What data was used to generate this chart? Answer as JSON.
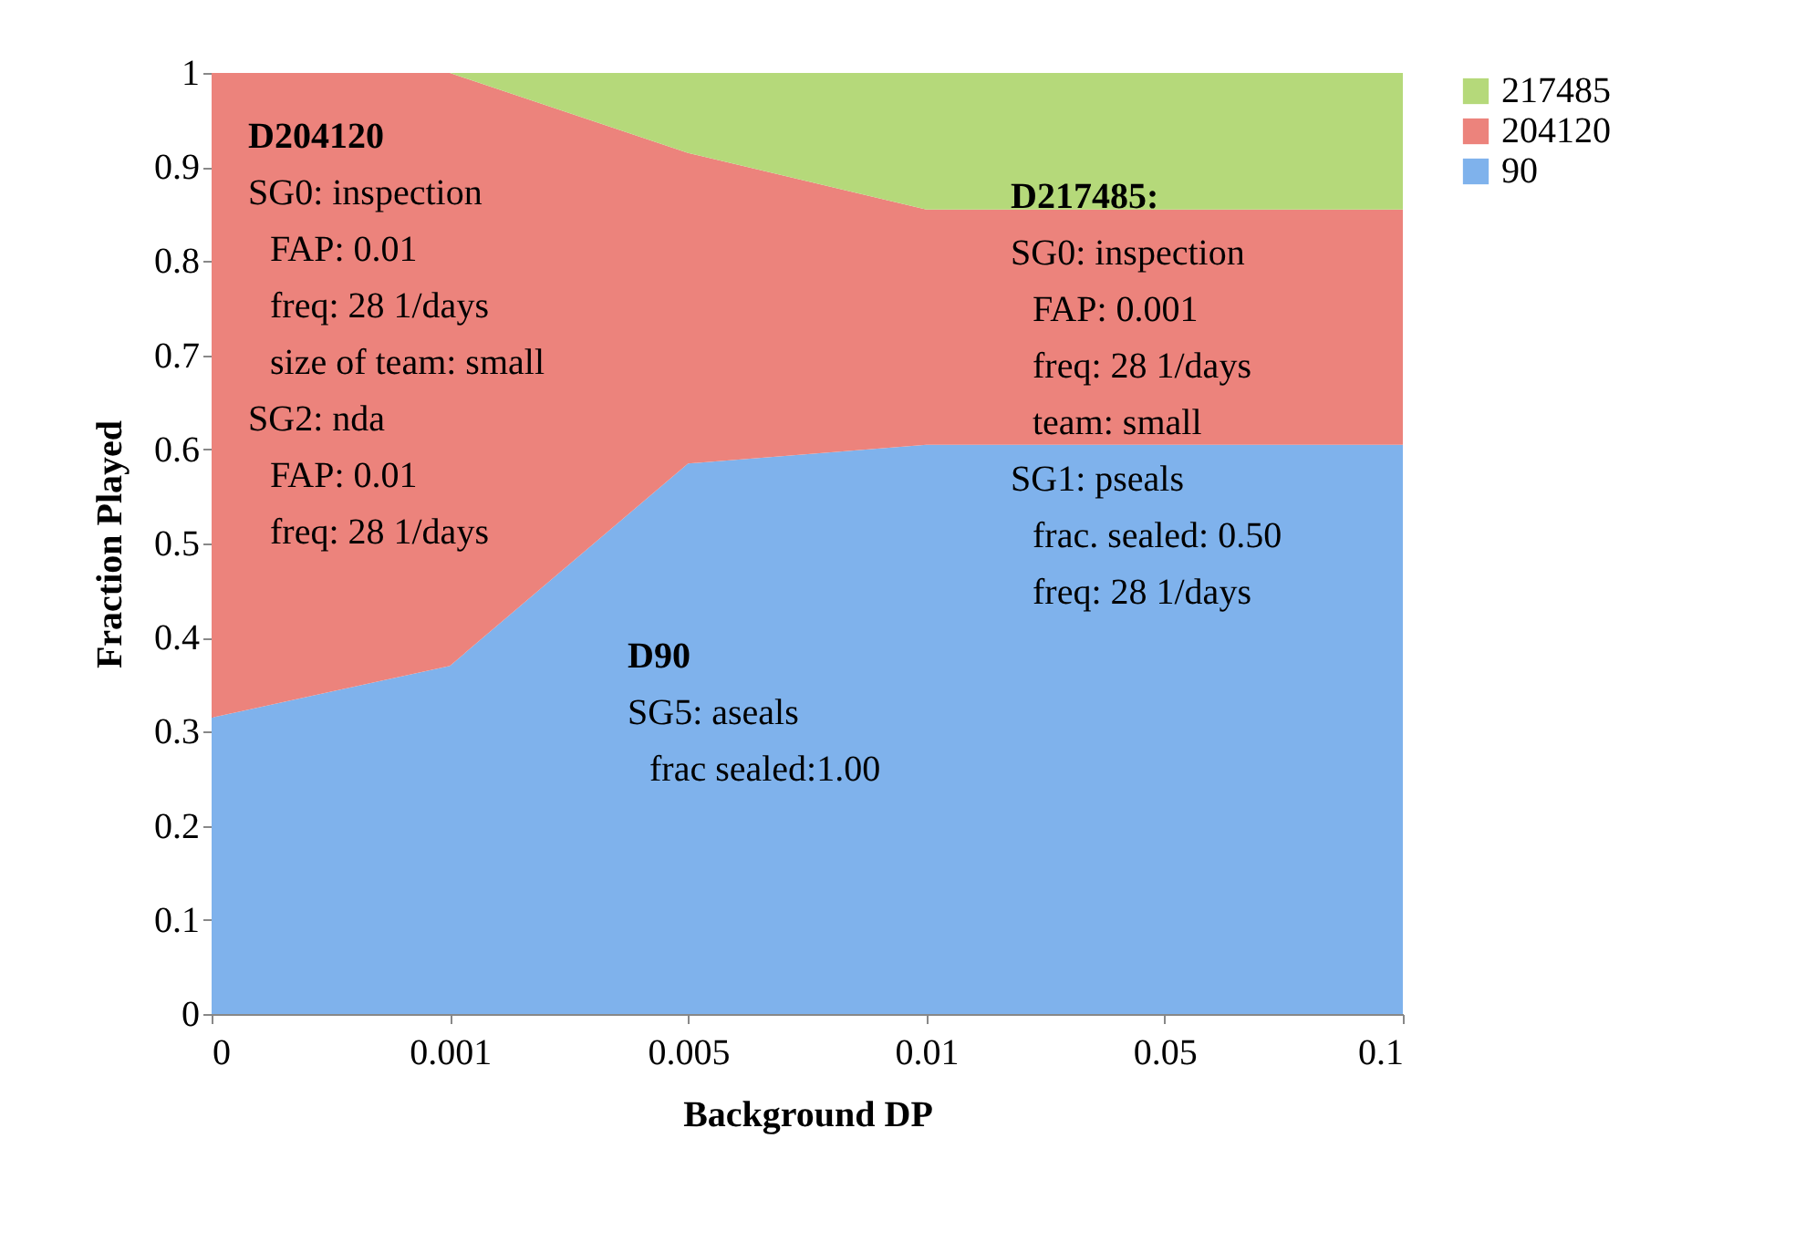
{
  "chart_data": {
    "type": "area",
    "stacked": true,
    "xlabel": "Background DP",
    "ylabel": "Fraction Played",
    "categories": [
      "0",
      "0.001",
      "0.005",
      "0.01",
      "0.05",
      "0.1"
    ],
    "series": [
      {
        "name": "90",
        "color": "#7fb2ec",
        "values": [
          0.315,
          0.37,
          0.585,
          0.605,
          0.605,
          0.605
        ]
      },
      {
        "name": "204120",
        "color": "#ec837c",
        "values": [
          0.685,
          0.63,
          0.33,
          0.25,
          0.25,
          0.25
        ]
      },
      {
        "name": "217485",
        "color": "#b5d97a",
        "values": [
          0,
          0,
          0.085,
          0.145,
          0.145,
          0.145
        ]
      }
    ],
    "ylim": [
      0,
      1
    ],
    "yticks": [
      0,
      0.1,
      0.2,
      0.3,
      0.4,
      0.5,
      0.6,
      0.7,
      0.8,
      0.9,
      1
    ],
    "grid": false,
    "legend": "right",
    "annotations": [
      "D204120\nSG0: inspection\n  FAP: 0.01\n  freq: 28 1/days\n  size of team: small\nSG2: nda\n  FAP: 0.01\n  freq: 28 1/days",
      "D217485:\nSG0: inspection\n  FAP: 0.001\n  freq: 28 1/days\n  team: small\nSG1: pseals\n  frac. sealed: 0.50\n  freq: 28 1/days",
      "D90\nSG5: aseals\n  frac sealed:1.00"
    ]
  }
}
